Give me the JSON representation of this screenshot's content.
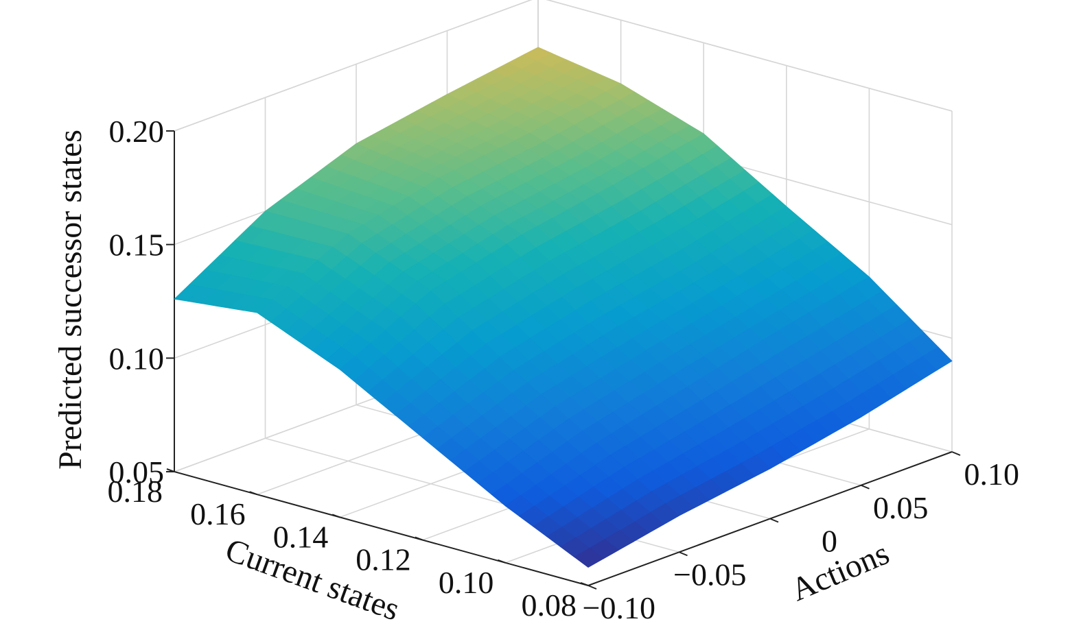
{
  "chart_data": {
    "type": "surface",
    "title": "",
    "xlabel": "Current states",
    "ylabel": "Actions",
    "zlabel": "Predicted successor states",
    "x_ticks": [
      "0.18",
      "0.16",
      "0.14",
      "0.12",
      "0.10",
      "0.08"
    ],
    "x_tick_values": [
      0.18,
      0.16,
      0.14,
      0.12,
      0.1,
      0.08
    ],
    "y_ticks": [
      "−0.10",
      "−0.05",
      "0",
      "0.05",
      "0.10"
    ],
    "y_tick_values": [
      -0.1,
      -0.05,
      0,
      0.05,
      0.1
    ],
    "z_ticks": [
      "0.05",
      "0.10",
      "0.15",
      "0.20"
    ],
    "z_tick_values": [
      0.05,
      0.1,
      0.15,
      0.2
    ],
    "xlim": [
      0.08,
      0.18
    ],
    "ylim": [
      -0.1,
      0.1
    ],
    "zlim": [
      0.05,
      0.2
    ],
    "colormap": "parula",
    "grid": true,
    "surface_x": [
      0.18,
      0.16,
      0.14,
      0.12,
      0.1,
      0.08
    ],
    "surface_y": [
      -0.1,
      -0.05,
      0,
      0.05,
      0.1
    ],
    "surface_z": [
      [
        0.126,
        0.15,
        0.165,
        0.172,
        0.178
      ],
      [
        0.13,
        0.15,
        0.16,
        0.165,
        0.172
      ],
      [
        0.115,
        0.135,
        0.145,
        0.152,
        0.16
      ],
      [
        0.095,
        0.11,
        0.12,
        0.128,
        0.138
      ],
      [
        0.075,
        0.088,
        0.098,
        0.108,
        0.117
      ],
      [
        0.058,
        0.066,
        0.072,
        0.08,
        0.09
      ]
    ]
  }
}
